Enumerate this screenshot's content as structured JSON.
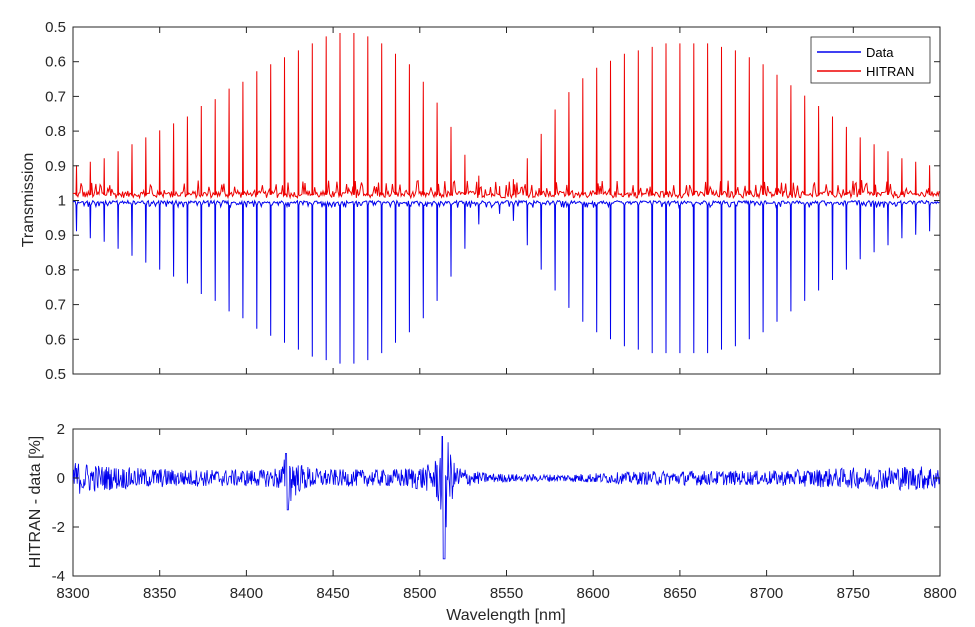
{
  "chart_data": [
    {
      "type": "line",
      "panel": "top",
      "xlabel": "",
      "ylabel": "Transmission",
      "xlim": [
        8300,
        8800
      ],
      "y_tick_labels": [
        "0.5",
        "0.6",
        "0.7",
        "0.8",
        "0.9",
        "1",
        "0.9",
        "0.8",
        "0.7",
        "0.6",
        "0.5"
      ],
      "y_layout_note": "mirrored axis: HITRAN plotted downward-inverted above 1, Data below 1",
      "grid": false,
      "legend": {
        "position": "top-right",
        "entries": [
          "Data",
          "HITRAN"
        ]
      },
      "series": [
        {
          "name": "Data",
          "color": "#0000ee",
          "description": "absorption line comb, line minima",
          "x": [
            8302,
            8310,
            8318,
            8326,
            8334,
            8342,
            8350,
            8358,
            8366,
            8374,
            8382,
            8390,
            8398,
            8406,
            8414,
            8422,
            8430,
            8438,
            8446,
            8454,
            8462,
            8470,
            8478,
            8486,
            8494,
            8502,
            8510,
            8518,
            8526,
            8534,
            8546,
            8554,
            8562,
            8570,
            8578,
            8586,
            8594,
            8602,
            8610,
            8618,
            8626,
            8634,
            8642,
            8650,
            8658,
            8666,
            8674,
            8682,
            8690,
            8698,
            8706,
            8714,
            8722,
            8730,
            8738,
            8746,
            8754,
            8762,
            8770,
            8778,
            8786,
            8794
          ],
          "y": [
            0.91,
            0.89,
            0.88,
            0.86,
            0.84,
            0.82,
            0.8,
            0.78,
            0.76,
            0.73,
            0.71,
            0.68,
            0.66,
            0.63,
            0.61,
            0.59,
            0.57,
            0.55,
            0.54,
            0.53,
            0.53,
            0.54,
            0.56,
            0.59,
            0.62,
            0.66,
            0.71,
            0.78,
            0.86,
            0.93,
            0.96,
            0.94,
            0.87,
            0.8,
            0.74,
            0.69,
            0.65,
            0.62,
            0.6,
            0.58,
            0.57,
            0.56,
            0.56,
            0.56,
            0.56,
            0.56,
            0.57,
            0.58,
            0.6,
            0.62,
            0.65,
            0.68,
            0.71,
            0.74,
            0.77,
            0.8,
            0.83,
            0.85,
            0.87,
            0.89,
            0.9,
            0.91
          ]
        },
        {
          "name": "HITRAN",
          "color": "#ee0000",
          "description": "mirrored absorption line comb, line minima",
          "x": [
            8302,
            8310,
            8318,
            8326,
            8334,
            8342,
            8350,
            8358,
            8366,
            8374,
            8382,
            8390,
            8398,
            8406,
            8414,
            8422,
            8430,
            8438,
            8446,
            8454,
            8462,
            8470,
            8478,
            8486,
            8494,
            8502,
            8510,
            8518,
            8526,
            8534,
            8546,
            8554,
            8562,
            8570,
            8578,
            8586,
            8594,
            8602,
            8610,
            8618,
            8626,
            8634,
            8642,
            8650,
            8658,
            8666,
            8674,
            8682,
            8690,
            8698,
            8706,
            8714,
            8722,
            8730,
            8738,
            8746,
            8754,
            8762,
            8770,
            8778,
            8786,
            8794
          ],
          "y": [
            0.9,
            0.89,
            0.88,
            0.86,
            0.84,
            0.82,
            0.8,
            0.78,
            0.76,
            0.73,
            0.71,
            0.68,
            0.66,
            0.63,
            0.61,
            0.59,
            0.57,
            0.55,
            0.53,
            0.52,
            0.52,
            0.53,
            0.55,
            0.58,
            0.61,
            0.66,
            0.72,
            0.79,
            0.87,
            0.93,
            0.96,
            0.94,
            0.88,
            0.81,
            0.74,
            0.69,
            0.65,
            0.62,
            0.6,
            0.58,
            0.57,
            0.56,
            0.55,
            0.55,
            0.55,
            0.55,
            0.56,
            0.57,
            0.59,
            0.61,
            0.64,
            0.67,
            0.7,
            0.73,
            0.76,
            0.79,
            0.82,
            0.84,
            0.86,
            0.88,
            0.89,
            0.9
          ]
        }
      ]
    },
    {
      "type": "line",
      "panel": "bottom",
      "xlabel": "Wavelength [nm]",
      "ylabel": "HITRAN - data [%]",
      "xlim": [
        8300,
        8800
      ],
      "ylim": [
        -4,
        2
      ],
      "x_ticks": [
        8300,
        8350,
        8400,
        8450,
        8500,
        8550,
        8600,
        8650,
        8700,
        8750,
        8800
      ],
      "y_ticks": [
        -4,
        -2,
        0,
        2
      ],
      "grid": false,
      "series": [
        {
          "name": "",
          "color": "#0000ee",
          "description": "residual noise around 0, amplitude ~0.5, peaks at 8424 and 8514",
          "x": [
            8300,
            8310,
            8320,
            8330,
            8340,
            8350,
            8360,
            8370,
            8380,
            8390,
            8400,
            8410,
            8420,
            8424,
            8430,
            8440,
            8450,
            8460,
            8470,
            8480,
            8490,
            8500,
            8508,
            8512,
            8514,
            8516,
            8520,
            8530,
            8540,
            8560,
            8580,
            8600,
            8620,
            8640,
            8660,
            8680,
            8700,
            8720,
            8740,
            8760,
            8780,
            8800
          ],
          "amplitude": [
            0.7,
            0.6,
            0.5,
            0.45,
            0.4,
            0.4,
            0.35,
            0.35,
            0.35,
            0.35,
            0.35,
            0.35,
            0.5,
            1.2,
            0.6,
            0.4,
            0.35,
            0.35,
            0.35,
            0.35,
            0.4,
            0.5,
            0.6,
            1.4,
            3.3,
            1.6,
            0.6,
            0.3,
            0.2,
            0.15,
            0.15,
            0.2,
            0.25,
            0.3,
            0.3,
            0.3,
            0.3,
            0.35,
            0.4,
            0.45,
            0.5,
            0.5
          ]
        }
      ]
    }
  ],
  "legend": {
    "data_label": "Data",
    "hitran_label": "HITRAN"
  },
  "labels": {
    "top_ylabel": "Transmission",
    "bottom_ylabel": "HITRAN - data [%]",
    "xlabel": "Wavelength [nm]"
  },
  "top_ticks": [
    "0.5",
    "0.6",
    "0.7",
    "0.8",
    "0.9",
    "1",
    "0.9",
    "0.8",
    "0.7",
    "0.6",
    "0.5"
  ],
  "bottom_ticks": [
    "2",
    "0",
    "-2",
    "-4"
  ],
  "x_ticks": [
    "8300",
    "8350",
    "8400",
    "8450",
    "8500",
    "8550",
    "8600",
    "8650",
    "8700",
    "8750",
    "8800"
  ]
}
